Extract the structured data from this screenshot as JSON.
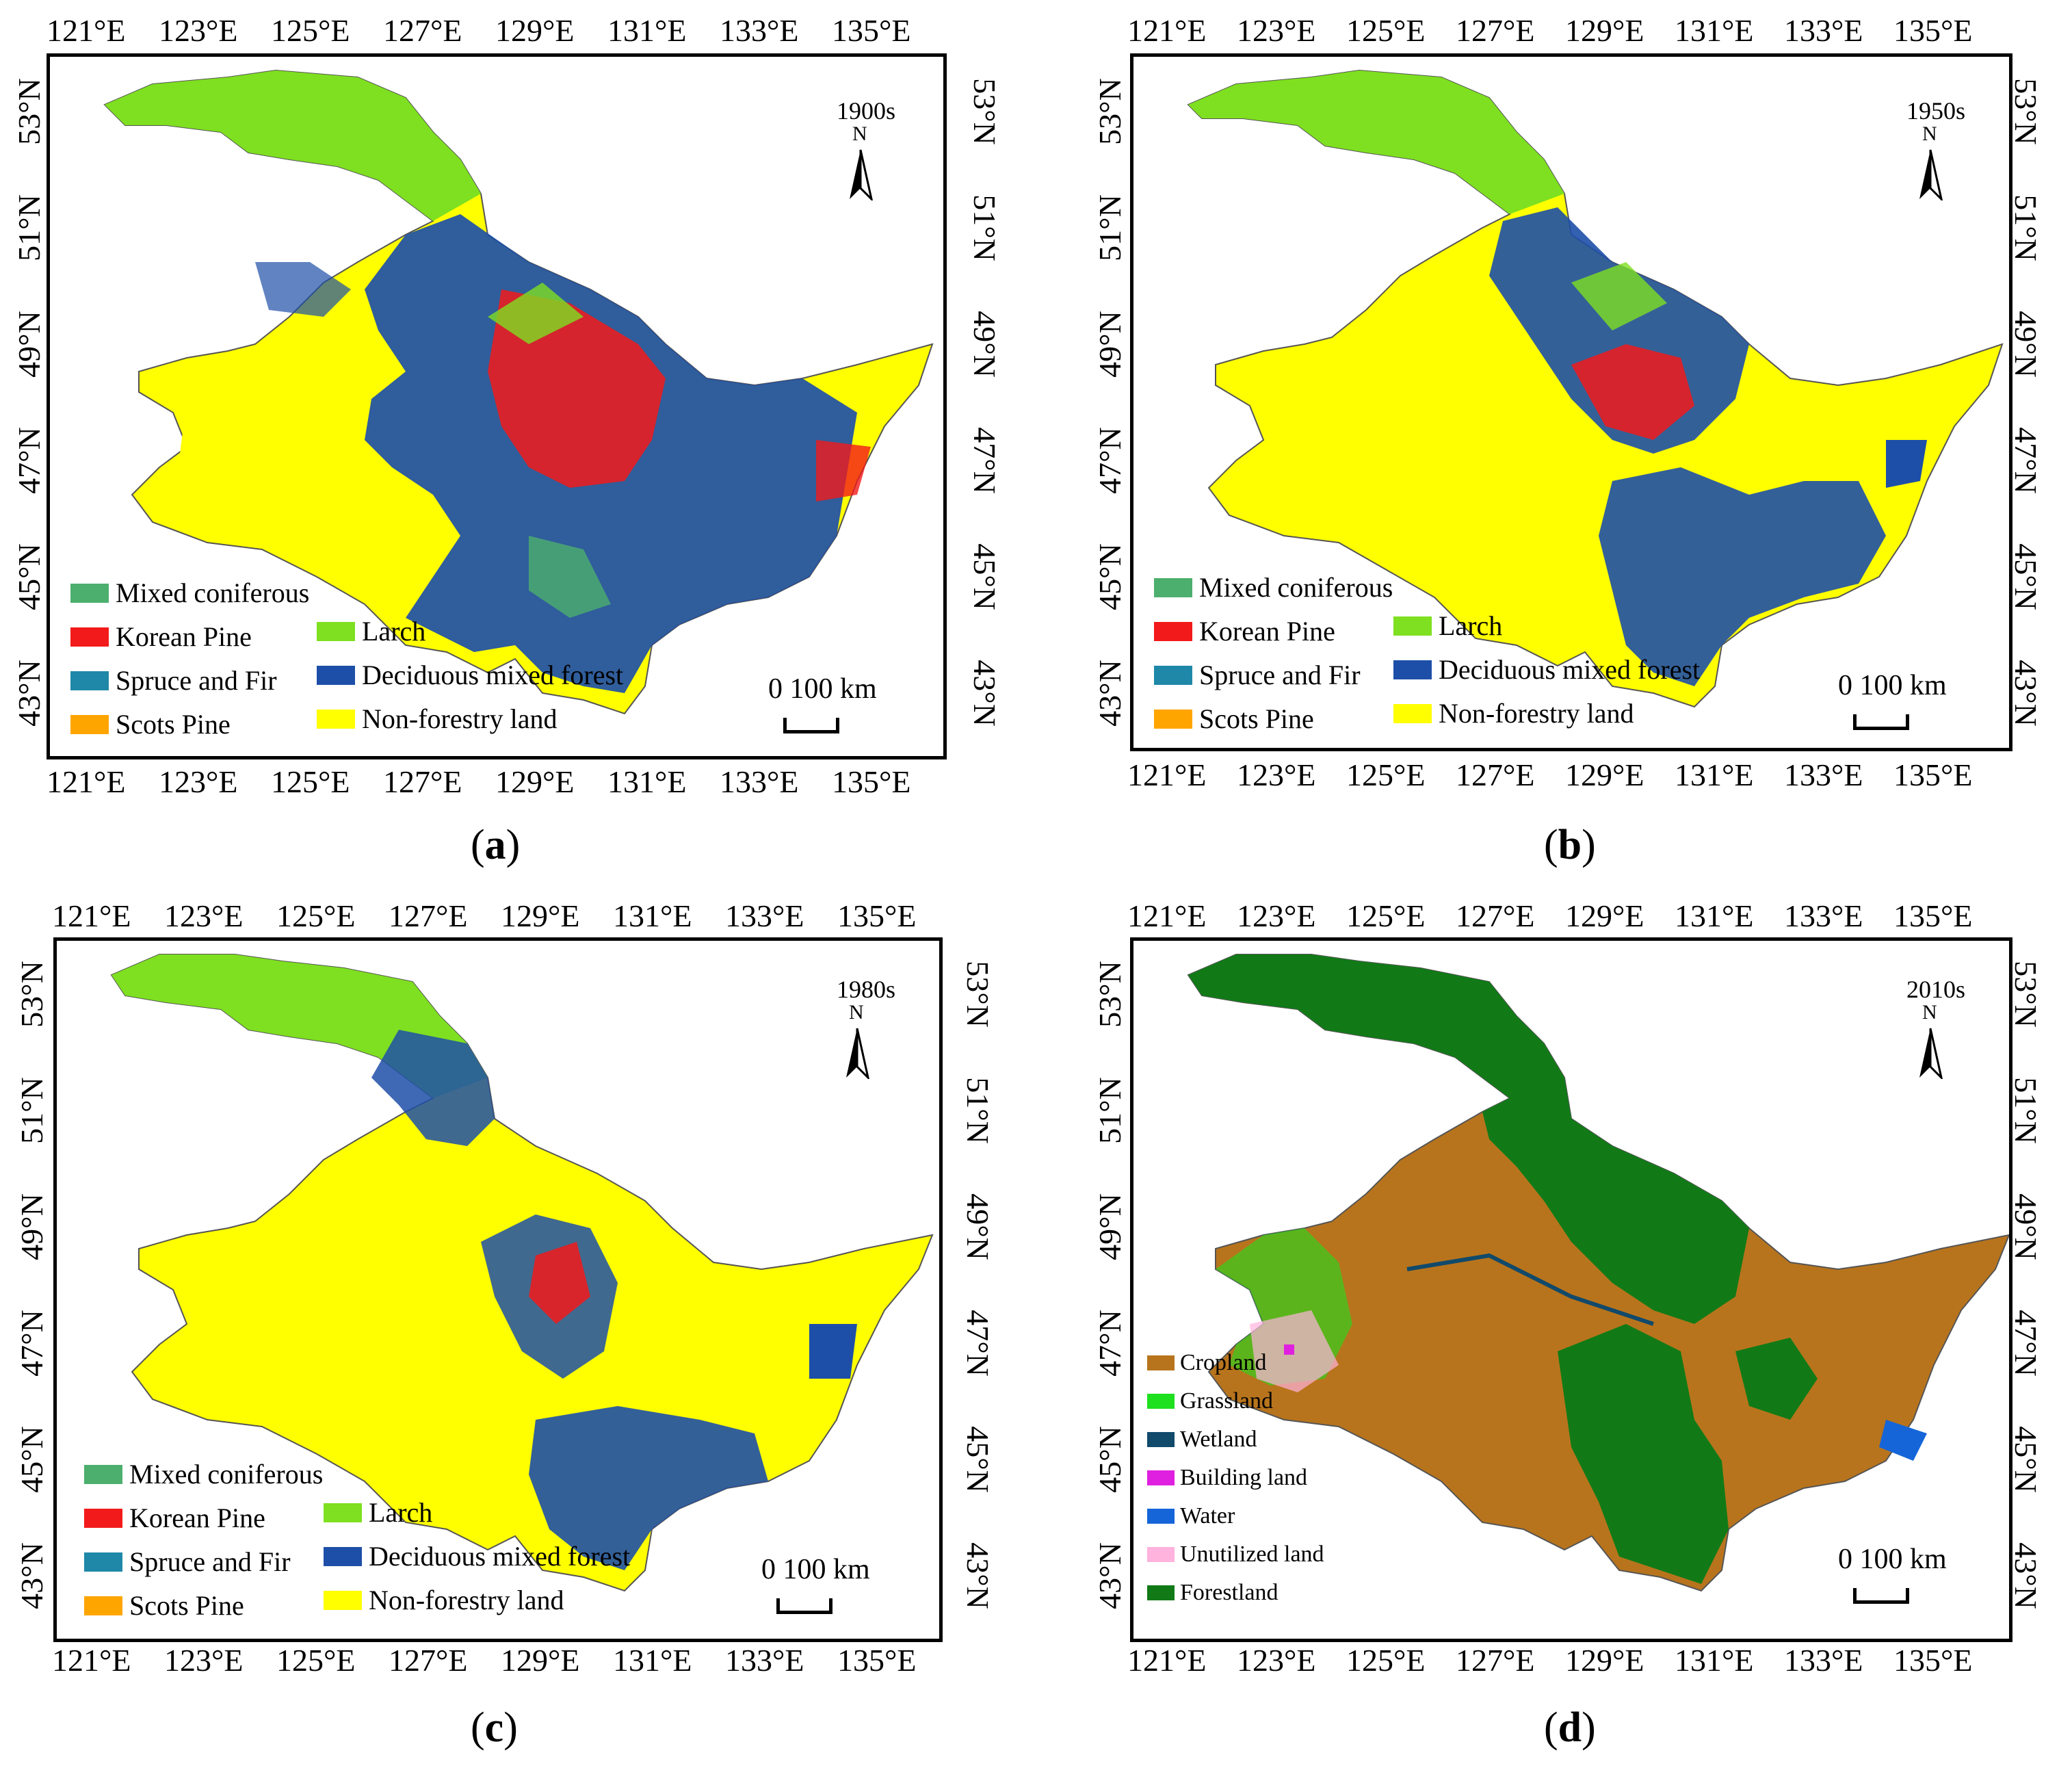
{
  "axes": {
    "lon_ticks": [
      "121°E",
      "123°E",
      "125°E",
      "127°E",
      "129°E",
      "131°E",
      "133°E",
      "135°E"
    ],
    "lat_ticks": [
      "53°N",
      "51°N",
      "49°N",
      "47°N",
      "45°N",
      "43°N"
    ]
  },
  "north_label": "N",
  "scale_text": "0  100  km",
  "colors": {
    "mixed_coniferous": "#4caf6e",
    "korean_pine": "#f21a1a",
    "spruce_fir": "#1f88a8",
    "scots_pine": "#ffa500",
    "larch": "#7ee020",
    "deciduous": "#1e4fa8",
    "nonforestry": "#ffff00",
    "cropland": "#b8741c",
    "grassland": "#1ee01e",
    "wetland": "#114a6a",
    "building": "#e020e0",
    "water": "#1565d8",
    "unutilized": "#ffb3dd",
    "forestland": "#117a17",
    "boundary": "#808080"
  },
  "forest_legend": {
    "mixed_coniferous": "Mixed coniferous",
    "korean_pine": "Korean Pine",
    "spruce_fir": "Spruce and Fir",
    "scots_pine": "Scots Pine",
    "larch": "Larch",
    "deciduous": "Deciduous mixed forest",
    "nonforestry": "Non-forestry land"
  },
  "landuse_legend": {
    "cropland": "Cropland",
    "grassland": "Grassland",
    "wetland": "Wetland",
    "building": "Building land",
    "water": "Water",
    "unutilized": "Unutilized land",
    "forestland": "Forestland"
  },
  "panels": [
    {
      "decade": "1900s",
      "label": "a"
    },
    {
      "decade": "1950s",
      "label": "b"
    },
    {
      "decade": "1980s",
      "label": "c"
    },
    {
      "decade": "2010s",
      "label": "d"
    }
  ]
}
